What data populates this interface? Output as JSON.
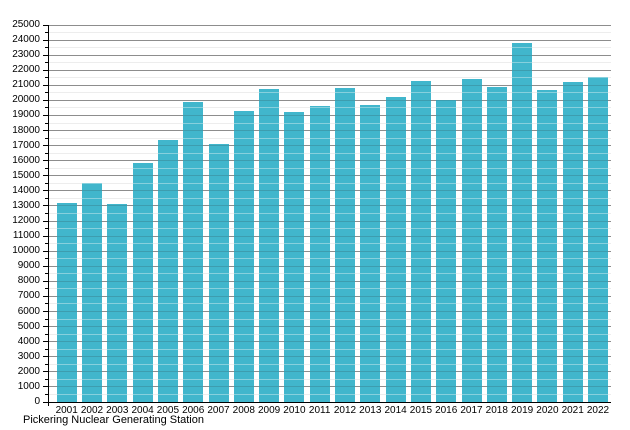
{
  "chart_data": {
    "type": "bar",
    "title": "",
    "caption": "Pickering Nuclear Generating Station",
    "categories": [
      "2001",
      "2002",
      "2003",
      "2004",
      "2005",
      "2006",
      "2007",
      "2008",
      "2009",
      "2010",
      "2011",
      "2012",
      "2013",
      "2014",
      "2015",
      "2016",
      "2017",
      "2018",
      "2019",
      "2020",
      "2021",
      "2022"
    ],
    "values": [
      13200,
      14550,
      13150,
      15850,
      17350,
      19900,
      17100,
      19300,
      20750,
      19250,
      19650,
      20800,
      19700,
      20200,
      21300,
      20050,
      21450,
      20900,
      23800,
      20700,
      21250,
      21550
    ],
    "xlabel": "",
    "ylabel": "",
    "ylim": [
      0,
      25000
    ],
    "y_major_step": 1000,
    "y_minor_step": 500,
    "grid": "horizontal major+minor, no vertical grid",
    "legend": "none",
    "colors": {
      "bar": "#41b6cd",
      "major_grid": "#999999",
      "minor_grid": "#e2e2e2",
      "axis": "#000000",
      "background": "#ffffff"
    }
  }
}
